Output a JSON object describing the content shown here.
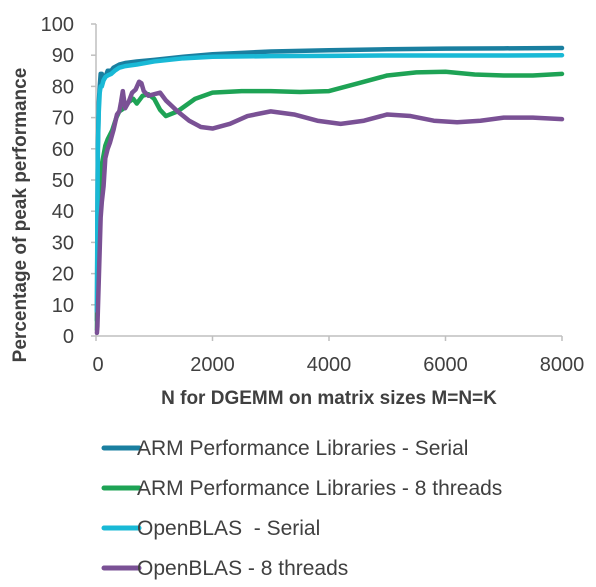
{
  "chart_data": {
    "type": "line",
    "xlabel": "N for DGEMM on matrix sizes M=N=K",
    "ylabel": "Percentage of peak performance",
    "xlim": [
      0,
      8000
    ],
    "ylim": [
      0,
      100
    ],
    "x_ticks": [
      "0",
      "2000",
      "4000",
      "6000",
      "8000"
    ],
    "y_ticks": [
      "0",
      "10",
      "20",
      "30",
      "40",
      "50",
      "60",
      "70",
      "80",
      "90",
      "100"
    ],
    "grid": false,
    "legend_position": "bottom",
    "series": [
      {
        "name": "ARM Performance Libraries - Serial",
        "color": "#1a7fa0",
        "points": [
          [
            16,
            5
          ],
          [
            24,
            35
          ],
          [
            32,
            60
          ],
          [
            48,
            75
          ],
          [
            64,
            80
          ],
          [
            80,
            84
          ],
          [
            100,
            84
          ],
          [
            130,
            82
          ],
          [
            160,
            83
          ],
          [
            200,
            85
          ],
          [
            260,
            85
          ],
          [
            300,
            86
          ],
          [
            400,
            87
          ],
          [
            500,
            87.5
          ],
          [
            700,
            88
          ],
          [
            1000,
            88.5
          ],
          [
            1500,
            89.5
          ],
          [
            2000,
            90.3
          ],
          [
            3000,
            91.2
          ],
          [
            4000,
            91.6
          ],
          [
            5000,
            91.9
          ],
          [
            6000,
            92.1
          ],
          [
            7000,
            92.2
          ],
          [
            8000,
            92.3
          ]
        ]
      },
      {
        "name": "ARM Performance Libraries - 8 threads",
        "color": "#1ea355",
        "points": [
          [
            16,
            2
          ],
          [
            24,
            15
          ],
          [
            40,
            35
          ],
          [
            64,
            45
          ],
          [
            100,
            55
          ],
          [
            160,
            61
          ],
          [
            200,
            63
          ],
          [
            280,
            66
          ],
          [
            350,
            70
          ],
          [
            400,
            72
          ],
          [
            480,
            73
          ],
          [
            560,
            75
          ],
          [
            640,
            76
          ],
          [
            700,
            74.5
          ],
          [
            800,
            77
          ],
          [
            900,
            77.5
          ],
          [
            1000,
            76
          ],
          [
            1100,
            72.5
          ],
          [
            1200,
            70.5
          ],
          [
            1400,
            72
          ],
          [
            1700,
            76
          ],
          [
            2000,
            78
          ],
          [
            2500,
            78.5
          ],
          [
            3000,
            78.5
          ],
          [
            3500,
            78.2
          ],
          [
            4000,
            78.5
          ],
          [
            4500,
            81
          ],
          [
            5000,
            83.5
          ],
          [
            5500,
            84.5
          ],
          [
            6000,
            84.7
          ],
          [
            6500,
            83.8
          ],
          [
            7000,
            83.5
          ],
          [
            7500,
            83.5
          ],
          [
            8000,
            84
          ]
        ]
      },
      {
        "name": "OpenBLAS  - Serial",
        "color": "#19b9d6",
        "points": [
          [
            16,
            8
          ],
          [
            24,
            40
          ],
          [
            32,
            60
          ],
          [
            48,
            72
          ],
          [
            64,
            78
          ],
          [
            80,
            80
          ],
          [
            100,
            80
          ],
          [
            130,
            82
          ],
          [
            160,
            83
          ],
          [
            200,
            83.5
          ],
          [
            260,
            84
          ],
          [
            320,
            85
          ],
          [
            400,
            86
          ],
          [
            500,
            86.5
          ],
          [
            700,
            87
          ],
          [
            1000,
            88
          ],
          [
            1500,
            89
          ],
          [
            2000,
            89.5
          ],
          [
            3000,
            89.7
          ],
          [
            4000,
            89.8
          ],
          [
            5000,
            89.9
          ],
          [
            6000,
            89.9
          ],
          [
            7000,
            89.9
          ],
          [
            8000,
            90
          ]
        ]
      },
      {
        "name": "OpenBLAS - 8 threads",
        "color": "#7a5195",
        "points": [
          [
            16,
            1
          ],
          [
            24,
            3
          ],
          [
            32,
            8
          ],
          [
            48,
            18
          ],
          [
            64,
            28
          ],
          [
            80,
            38
          ],
          [
            100,
            43
          ],
          [
            130,
            48
          ],
          [
            160,
            57
          ],
          [
            200,
            60
          ],
          [
            240,
            62
          ],
          [
            300,
            66
          ],
          [
            360,
            71
          ],
          [
            400,
            72
          ],
          [
            430,
            75
          ],
          [
            460,
            78.5
          ],
          [
            500,
            73
          ],
          [
            560,
            75
          ],
          [
            620,
            78
          ],
          [
            680,
            79
          ],
          [
            740,
            81.5
          ],
          [
            780,
            81
          ],
          [
            820,
            78.5
          ],
          [
            900,
            77
          ],
          [
            1000,
            77.5
          ],
          [
            1100,
            78
          ],
          [
            1200,
            75.5
          ],
          [
            1400,
            72
          ],
          [
            1600,
            69
          ],
          [
            1800,
            67
          ],
          [
            2000,
            66.5
          ],
          [
            2300,
            68
          ],
          [
            2600,
            70.5
          ],
          [
            3000,
            72
          ],
          [
            3400,
            71
          ],
          [
            3800,
            69
          ],
          [
            4200,
            68
          ],
          [
            4600,
            69
          ],
          [
            5000,
            71
          ],
          [
            5400,
            70.5
          ],
          [
            5800,
            69
          ],
          [
            6200,
            68.5
          ],
          [
            6600,
            69
          ],
          [
            7000,
            70
          ],
          [
            7500,
            70
          ],
          [
            8000,
            69.5
          ]
        ]
      }
    ]
  }
}
